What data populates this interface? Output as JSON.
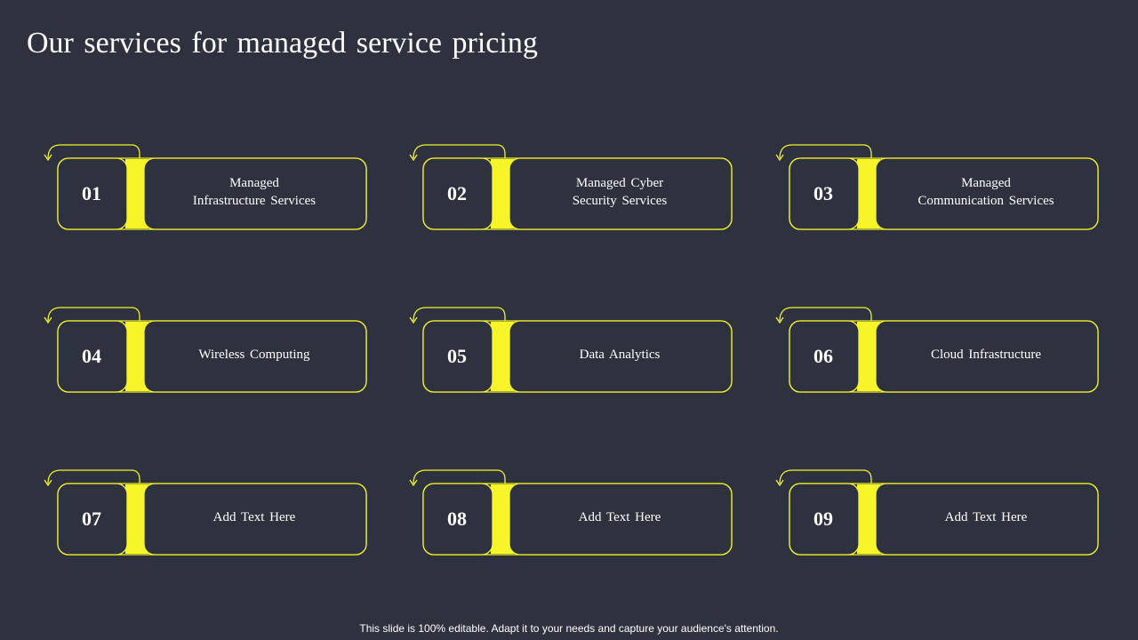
{
  "slide": {
    "title": "Our services  for managed service pricing",
    "footer": "This slide is 100% editable. Adapt it to your needs and capture your audience's attention.",
    "accent_color": "#f5f52a",
    "background_color": "#2e313e",
    "cards": [
      {
        "number": "01",
        "label": "Managed\nInfrastructure  Services"
      },
      {
        "number": "02",
        "label": "Managed  Cyber\nSecurity  Services"
      },
      {
        "number": "03",
        "label": "Managed\nCommunication  Services"
      },
      {
        "number": "04",
        "label": "Wireless  Computing"
      },
      {
        "number": "05",
        "label": "Data Analytics"
      },
      {
        "number": "06",
        "label": "Cloud Infrastructure"
      },
      {
        "number": "07",
        "label": "Add Text  Here"
      },
      {
        "number": "08",
        "label": "Add Text  Here"
      },
      {
        "number": "09",
        "label": "Add Text  Here"
      }
    ]
  }
}
